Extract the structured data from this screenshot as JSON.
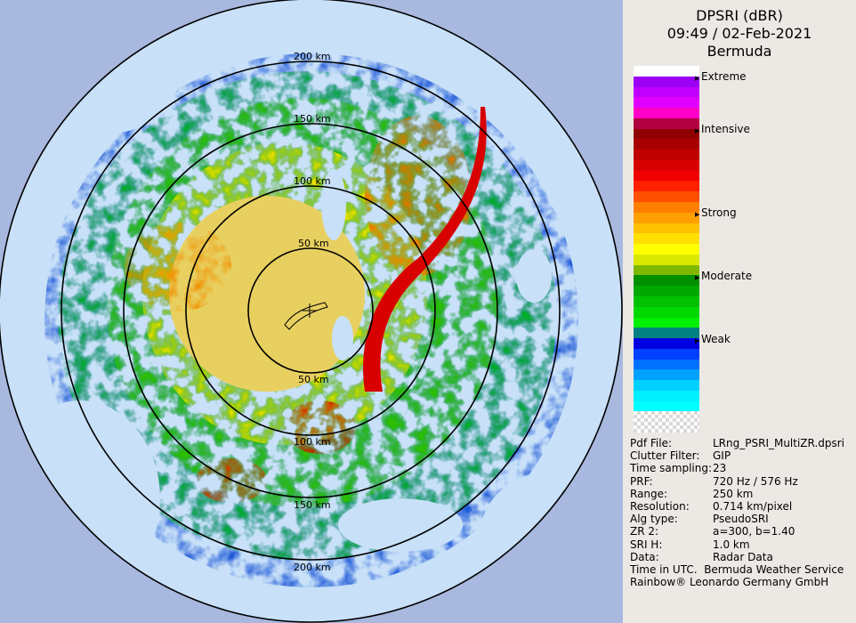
{
  "header": {
    "product": "DPSRI (dBR)",
    "datetime": "09:49 / 02-Feb-2021",
    "site": "Bermuda"
  },
  "legend": {
    "labels": [
      "Extreme",
      "Intensive",
      "Strong",
      "Moderate",
      "Weak"
    ],
    "colors": [
      "#ffffff",
      "#9b00f5",
      "#c000ff",
      "#e000ff",
      "#ff00c8",
      "#b00040",
      "#900000",
      "#a80000",
      "#c00000",
      "#d80000",
      "#f00000",
      "#ff2000",
      "#ff5000",
      "#ff8000",
      "#ffa000",
      "#ffc000",
      "#ffe000",
      "#ffff00",
      "#d8e800",
      "#80b800",
      "#009000",
      "#00a800",
      "#00c000",
      "#00d800",
      "#00f000",
      "#008080",
      "#0000e0",
      "#0040ff",
      "#0070ff",
      "#00a0ff",
      "#00d0ff",
      "#00f0ff",
      "#00ffff"
    ]
  },
  "rings": [
    "50 km",
    "100 km",
    "150 km",
    "200 km"
  ],
  "info": [
    {
      "key": "Pdf File:",
      "value": "LRng_PSRI_MultiZR.dpsri"
    },
    {
      "key": "Clutter Filter:",
      "value": "GIP"
    },
    {
      "key": "Time sampling:",
      "value": "23"
    },
    {
      "key": "PRF:",
      "value": "720 Hz / 576 Hz"
    },
    {
      "key": "Range:",
      "value": "250 km"
    },
    {
      "key": "Resolution:",
      "value": "0.714 km/pixel"
    },
    {
      "key": "Alg type:",
      "value": "PseudoSRI"
    },
    {
      "key": "ZR 2:",
      "value": "a=300, b=1.40"
    },
    {
      "key": "SRI H:",
      "value": "1.0 km"
    },
    {
      "key": "Data:",
      "value": "Radar Data"
    }
  ],
  "footer": {
    "time_note": "Time in UTC.",
    "service": "Bermuda Weather Service",
    "credit": "Rainbow® Leonardo Germany GmbH"
  }
}
